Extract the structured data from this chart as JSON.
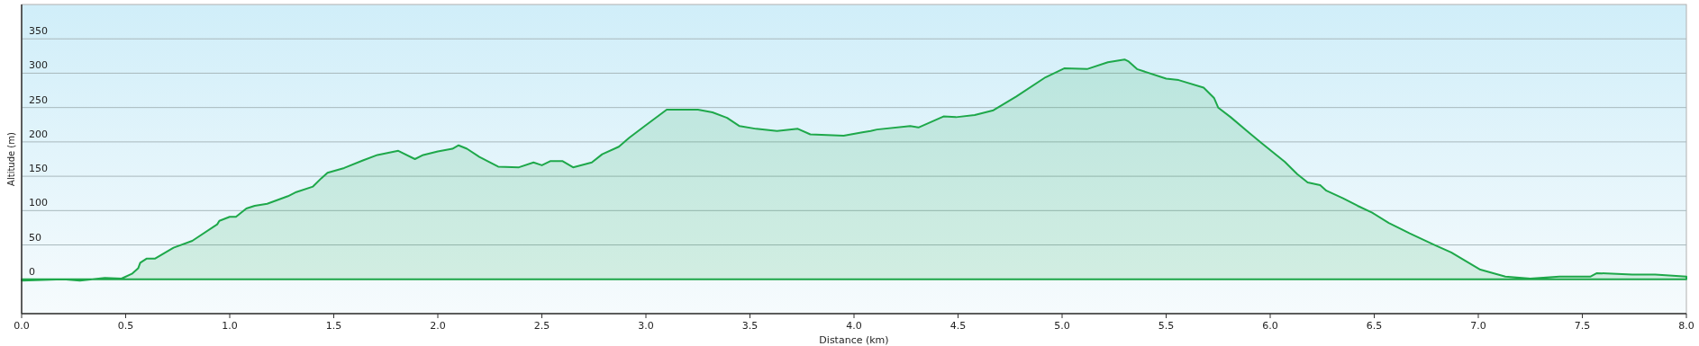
{
  "chart_data": {
    "type": "area",
    "xlabel": "Distance (km)",
    "ylabel": "Altitude (m)",
    "xlim": [
      0,
      8
    ],
    "ylim": [
      -50,
      400
    ],
    "xticks": [
      {
        "value": 0,
        "label": "0.0"
      },
      {
        "value": 0.5,
        "label": "0.5"
      },
      {
        "value": 1,
        "label": "1.0"
      },
      {
        "value": 1.5,
        "label": "1.5"
      },
      {
        "value": 2,
        "label": "2.0"
      },
      {
        "value": 2.5,
        "label": "2.5"
      },
      {
        "value": 3,
        "label": "3.0"
      },
      {
        "value": 3.5,
        "label": "3.5"
      },
      {
        "value": 4,
        "label": "4.0"
      },
      {
        "value": 4.5,
        "label": "4.5"
      },
      {
        "value": 5,
        "label": "5.0"
      },
      {
        "value": 5.5,
        "label": "5.5"
      },
      {
        "value": 6,
        "label": "6.0"
      },
      {
        "value": 6.5,
        "label": "6.5"
      },
      {
        "value": 7,
        "label": "7.0"
      },
      {
        "value": 7.5,
        "label": "7.5"
      },
      {
        "value": 8,
        "label": "8.0"
      }
    ],
    "yticks": [
      0,
      50,
      100,
      150,
      200,
      250,
      300,
      350
    ],
    "grid": "y",
    "x": [
      0,
      0.1,
      0.2,
      0.28,
      0.4,
      0.48,
      0.53,
      0.56,
      0.57,
      0.6,
      0.64,
      0.73,
      0.82,
      0.94,
      0.95,
      1.0,
      1.03,
      1.08,
      1.12,
      1.18,
      1.28,
      1.32,
      1.4,
      1.44,
      1.47,
      1.55,
      1.64,
      1.71,
      1.81,
      1.89,
      1.93,
      2.0,
      2.07,
      2.1,
      2.14,
      2.2,
      2.29,
      2.39,
      2.46,
      2.5,
      2.54,
      2.6,
      2.65,
      2.74,
      2.79,
      2.87,
      2.92,
      2.99,
      3.1,
      3.25,
      3.32,
      3.39,
      3.45,
      3.53,
      3.63,
      3.73,
      3.79,
      3.95,
      4.04,
      4.08,
      4.11,
      4.27,
      4.31,
      4.43,
      4.49,
      4.58,
      4.67,
      4.78,
      4.92,
      5.01,
      5.12,
      5.22,
      5.3,
      5.32,
      5.36,
      5.5,
      5.56,
      5.68,
      5.73,
      5.75,
      5.81,
      5.9,
      5.96,
      6.07,
      6.13,
      6.18,
      6.24,
      6.27,
      6.35,
      6.42,
      6.49,
      6.57,
      6.67,
      6.79,
      6.87,
      7.01,
      7.13,
      7.25,
      7.39,
      7.54,
      7.57,
      7.74,
      7.85,
      8.0
    ],
    "series": [
      {
        "color": "#1ea84a",
        "values": [
          -2,
          -1,
          0,
          -2,
          2,
          1,
          8,
          16,
          24,
          30,
          30,
          46,
          56,
          80,
          85,
          91,
          91,
          103,
          107,
          110,
          121,
          127,
          135,
          147,
          155,
          162,
          173,
          181,
          187,
          175,
          181,
          186,
          190,
          195,
          190,
          178,
          164,
          163,
          170,
          166,
          172,
          172,
          163,
          170,
          182,
          193,
          206,
          222,
          247,
          247,
          243,
          235,
          223,
          219,
          216,
          219,
          211,
          209,
          214,
          216,
          218,
          223,
          221,
          237,
          236,
          239,
          246,
          266,
          294,
          307,
          306,
          316,
          320,
          317,
          306,
          292,
          290,
          279,
          264,
          250,
          236,
          213,
          198,
          171,
          153,
          141,
          137,
          129,
          118,
          107,
          97,
          82,
          67,
          50,
          39,
          14,
          4,
          1,
          4,
          4,
          9,
          7,
          7,
          4
        ]
      }
    ]
  }
}
